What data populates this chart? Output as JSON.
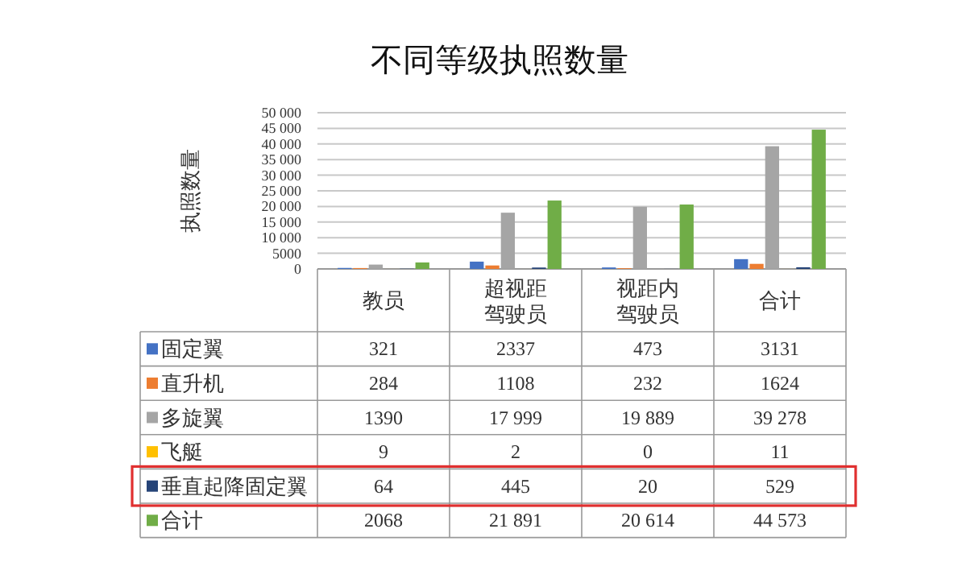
{
  "chart_data": {
    "type": "bar",
    "title": "不同等级执照数量",
    "ylabel": "执照数量",
    "categories": [
      "教员",
      "超视距驾驶员",
      "视距内驾驶员",
      "合计"
    ],
    "series": [
      {
        "name": "固定翼",
        "color": "#4472c4",
        "values": [
          321,
          2337,
          473,
          3131
        ],
        "value_labels": [
          "321",
          "2337",
          "473",
          "3131"
        ]
      },
      {
        "name": "直升机",
        "color": "#ed7d31",
        "values": [
          284,
          1108,
          232,
          1624
        ],
        "value_labels": [
          "284",
          "1108",
          "232",
          "1624"
        ]
      },
      {
        "name": "多旋翼",
        "color": "#a5a5a5",
        "values": [
          1390,
          17999,
          19889,
          39278
        ],
        "value_labels": [
          "1390",
          "17 999",
          "19 889",
          "39 278"
        ]
      },
      {
        "name": "飞艇",
        "color": "#ffc000",
        "values": [
          9,
          2,
          0,
          11
        ],
        "value_labels": [
          "9",
          "2",
          "0",
          "11"
        ]
      },
      {
        "name": "垂直起降固定翼",
        "color": "#264478",
        "values": [
          64,
          445,
          20,
          529
        ],
        "value_labels": [
          "64",
          "445",
          "20",
          "529"
        ]
      },
      {
        "name": "合计",
        "color": "#70ad47",
        "values": [
          2068,
          21891,
          20614,
          44573
        ],
        "value_labels": [
          "2068",
          "21 891",
          "20 614",
          "44 573"
        ]
      }
    ],
    "ylim": [
      0,
      50000
    ],
    "yticks": [
      0,
      5000,
      {
        "value": 10000,
        "label": "10 000"
      },
      {
        "value": 15000,
        "label": "15 000"
      },
      {
        "value": 20000,
        "label": "20 000"
      },
      {
        "value": 25000,
        "label": "25 000"
      },
      {
        "value": 30000,
        "label": "30 000"
      },
      {
        "value": 35000,
        "label": "35 000"
      },
      {
        "value": 40000,
        "label": "40 000"
      },
      {
        "value": 45000,
        "label": "45 000"
      },
      {
        "value": 50000,
        "label": "50 000"
      }
    ],
    "grid": "y",
    "legend": "bottom"
  }
}
